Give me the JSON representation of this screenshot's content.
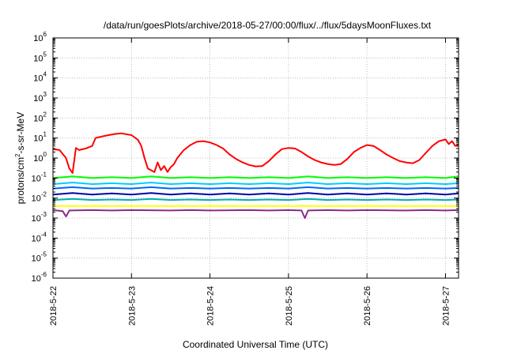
{
  "chart_data": {
    "type": "line",
    "title": "/data/run/goesPlots/archive/2018-05-27/00:00/flux/../flux/5daysMoonFluxes.txt",
    "xlabel": "Coordinated Universal Time (UTC)",
    "ylabel": {
      "prefix": "protons/cm",
      "sup": "2",
      "suffix": "-s-sr-MeV"
    },
    "y_scale": "log",
    "ylim": [
      1e-06,
      1000000
    ],
    "y_ticks": [
      {
        "base": "10",
        "exp": "-6",
        "value": 1e-06
      },
      {
        "base": "10",
        "exp": "-5",
        "value": 1e-05
      },
      {
        "base": "10",
        "exp": "-4",
        "value": 0.0001
      },
      {
        "base": "10",
        "exp": "-3",
        "value": 0.001
      },
      {
        "base": "10",
        "exp": "-2",
        "value": 0.01
      },
      {
        "base": "10",
        "exp": "-1",
        "value": 0.1
      },
      {
        "base": "10",
        "exp": "0",
        "value": 1
      },
      {
        "base": "10",
        "exp": "1",
        "value": 10
      },
      {
        "base": "10",
        "exp": "2",
        "value": 100
      },
      {
        "base": "10",
        "exp": "3",
        "value": 1000
      },
      {
        "base": "10",
        "exp": "4",
        "value": 10000
      },
      {
        "base": "10",
        "exp": "5",
        "value": 100000
      },
      {
        "base": "10",
        "exp": "6",
        "value": 1000000
      }
    ],
    "x_ticks": [
      "2018-5-22",
      "2018-5-23",
      "2018-5-24",
      "2018-5-25",
      "2018-5-26",
      "2018-5-27"
    ],
    "xlim": [
      "2018-5-22",
      "2018-5-27 04:00"
    ],
    "grid": true,
    "legend": "none",
    "series": [
      {
        "color": "#ff0000",
        "points": [
          [
            "2018-5-22 00:00",
            2.8
          ],
          [
            "2018-5-22 02:00",
            2.5
          ],
          [
            "2018-5-22 04:00",
            1.0
          ],
          [
            "2018-5-22 05:00",
            0.3
          ],
          [
            "2018-5-22 06:00",
            0.18
          ],
          [
            "2018-5-22 07:00",
            3.2
          ],
          [
            "2018-5-22 08:00",
            2.5
          ],
          [
            "2018-5-22 10:00",
            3.0
          ],
          [
            "2018-5-22 12:00",
            4.0
          ],
          [
            "2018-5-22 13:00",
            10.0
          ],
          [
            "2018-5-22 15:00",
            12.0
          ],
          [
            "2018-5-22 17:00",
            14.0
          ],
          [
            "2018-5-22 19:00",
            16.0
          ],
          [
            "2018-5-22 21:00",
            17.0
          ],
          [
            "2018-5-23 00:00",
            14.0
          ],
          [
            "2018-5-23 02:00",
            8.0
          ],
          [
            "2018-5-23 03:00",
            4.0
          ],
          [
            "2018-5-23 04:00",
            1.0
          ],
          [
            "2018-5-23 05:00",
            0.3
          ],
          [
            "2018-5-23 07:00",
            0.2
          ],
          [
            "2018-5-23 08:00",
            0.6
          ],
          [
            "2018-5-23 09:00",
            0.25
          ],
          [
            "2018-5-23 10:00",
            0.4
          ],
          [
            "2018-5-23 11:00",
            0.2
          ],
          [
            "2018-5-23 12:00",
            0.35
          ],
          [
            "2018-5-23 13:00",
            0.5
          ],
          [
            "2018-5-23 14:00",
            1.0
          ],
          [
            "2018-5-23 16:00",
            2.5
          ],
          [
            "2018-5-23 18:00",
            4.5
          ],
          [
            "2018-5-23 20:00",
            6.5
          ],
          [
            "2018-5-23 22:00",
            7.0
          ],
          [
            "2018-5-24 00:00",
            6.0
          ],
          [
            "2018-5-24 02:00",
            4.5
          ],
          [
            "2018-5-24 04:00",
            3.0
          ],
          [
            "2018-5-24 06:00",
            1.5
          ],
          [
            "2018-5-24 08:00",
            0.9
          ],
          [
            "2018-5-24 10:00",
            0.6
          ],
          [
            "2018-5-24 12:00",
            0.45
          ],
          [
            "2018-5-24 14:00",
            0.38
          ],
          [
            "2018-5-24 16:00",
            0.4
          ],
          [
            "2018-5-24 18:00",
            0.7
          ],
          [
            "2018-5-24 20:00",
            1.5
          ],
          [
            "2018-5-24 22:00",
            2.8
          ],
          [
            "2018-5-25 00:00",
            3.2
          ],
          [
            "2018-5-25 02:00",
            3.0
          ],
          [
            "2018-5-25 04:00",
            2.0
          ],
          [
            "2018-5-25 06:00",
            1.2
          ],
          [
            "2018-5-25 08:00",
            0.8
          ],
          [
            "2018-5-25 10:00",
            0.6
          ],
          [
            "2018-5-25 12:00",
            0.5
          ],
          [
            "2018-5-25 14:00",
            0.45
          ],
          [
            "2018-5-25 16:00",
            0.5
          ],
          [
            "2018-5-25 18:00",
            0.9
          ],
          [
            "2018-5-25 20:00",
            2.0
          ],
          [
            "2018-5-25 22:00",
            3.2
          ],
          [
            "2018-5-26 00:00",
            4.5
          ],
          [
            "2018-5-26 02:00",
            4.0
          ],
          [
            "2018-5-26 04:00",
            2.5
          ],
          [
            "2018-5-26 06:00",
            1.5
          ],
          [
            "2018-5-26 08:00",
            1.0
          ],
          [
            "2018-5-26 10:00",
            0.7
          ],
          [
            "2018-5-26 12:00",
            0.6
          ],
          [
            "2018-5-26 14:00",
            0.55
          ],
          [
            "2018-5-26 16:00",
            0.8
          ],
          [
            "2018-5-26 18:00",
            1.8
          ],
          [
            "2018-5-26 20:00",
            4.0
          ],
          [
            "2018-5-26 22:00",
            7.0
          ],
          [
            "2018-5-27 00:00",
            8.5
          ],
          [
            "2018-5-27 01:00",
            5.0
          ],
          [
            "2018-5-27 02:00",
            7.0
          ],
          [
            "2018-5-27 03:00",
            4.0
          ],
          [
            "2018-5-27 04:00",
            4.5
          ]
        ]
      },
      {
        "color": "#00ff00",
        "points": [
          [
            "2018-5-22 00:00",
            0.1
          ],
          [
            "2018-5-22 06:00",
            0.12
          ],
          [
            "2018-5-22 12:00",
            0.1
          ],
          [
            "2018-5-22 18:00",
            0.11
          ],
          [
            "2018-5-23 00:00",
            0.1
          ],
          [
            "2018-5-23 06:00",
            0.12
          ],
          [
            "2018-5-23 12:00",
            0.1
          ],
          [
            "2018-5-23 18:00",
            0.11
          ],
          [
            "2018-5-24 00:00",
            0.1
          ],
          [
            "2018-5-24 06:00",
            0.11
          ],
          [
            "2018-5-24 12:00",
            0.1
          ],
          [
            "2018-5-24 18:00",
            0.11
          ],
          [
            "2018-5-25 00:00",
            0.1
          ],
          [
            "2018-5-25 06:00",
            0.12
          ],
          [
            "2018-5-25 12:00",
            0.1
          ],
          [
            "2018-5-25 18:00",
            0.11
          ],
          [
            "2018-5-26 00:00",
            0.1
          ],
          [
            "2018-5-26 06:00",
            0.11
          ],
          [
            "2018-5-26 12:00",
            0.1
          ],
          [
            "2018-5-26 18:00",
            0.11
          ],
          [
            "2018-5-27 00:00",
            0.1
          ],
          [
            "2018-5-27 04:00",
            0.12
          ]
        ]
      },
      {
        "color": "#00ccff",
        "points": [
          [
            "2018-5-22 00:00",
            0.05
          ],
          [
            "2018-5-22 06:00",
            0.06
          ],
          [
            "2018-5-22 12:00",
            0.05
          ],
          [
            "2018-5-22 18:00",
            0.055
          ],
          [
            "2018-5-23 00:00",
            0.05
          ],
          [
            "2018-5-23 06:00",
            0.06
          ],
          [
            "2018-5-23 12:00",
            0.05
          ],
          [
            "2018-5-23 18:00",
            0.055
          ],
          [
            "2018-5-24 00:00",
            0.05
          ],
          [
            "2018-5-24 06:00",
            0.055
          ],
          [
            "2018-5-24 12:00",
            0.05
          ],
          [
            "2018-5-24 18:00",
            0.055
          ],
          [
            "2018-5-25 00:00",
            0.05
          ],
          [
            "2018-5-25 06:00",
            0.06
          ],
          [
            "2018-5-25 12:00",
            0.05
          ],
          [
            "2018-5-25 18:00",
            0.055
          ],
          [
            "2018-5-26 00:00",
            0.05
          ],
          [
            "2018-5-26 06:00",
            0.055
          ],
          [
            "2018-5-26 12:00",
            0.05
          ],
          [
            "2018-5-26 18:00",
            0.055
          ],
          [
            "2018-5-27 00:00",
            0.05
          ],
          [
            "2018-5-27 04:00",
            0.055
          ]
        ]
      },
      {
        "color": "#0066ff",
        "points": [
          [
            "2018-5-22 00:00",
            0.03
          ],
          [
            "2018-5-22 06:00",
            0.035
          ],
          [
            "2018-5-22 12:00",
            0.03
          ],
          [
            "2018-5-22 18:00",
            0.032
          ],
          [
            "2018-5-23 00:00",
            0.03
          ],
          [
            "2018-5-23 06:00",
            0.035
          ],
          [
            "2018-5-23 12:00",
            0.03
          ],
          [
            "2018-5-23 18:00",
            0.032
          ],
          [
            "2018-5-24 00:00",
            0.03
          ],
          [
            "2018-5-24 06:00",
            0.032
          ],
          [
            "2018-5-24 12:00",
            0.03
          ],
          [
            "2018-5-24 18:00",
            0.032
          ],
          [
            "2018-5-25 00:00",
            0.03
          ],
          [
            "2018-5-25 06:00",
            0.035
          ],
          [
            "2018-5-25 12:00",
            0.03
          ],
          [
            "2018-5-25 18:00",
            0.032
          ],
          [
            "2018-5-26 00:00",
            0.03
          ],
          [
            "2018-5-26 06:00",
            0.032
          ],
          [
            "2018-5-26 12:00",
            0.03
          ],
          [
            "2018-5-26 18:00",
            0.032
          ],
          [
            "2018-5-27 00:00",
            0.03
          ],
          [
            "2018-5-27 04:00",
            0.032
          ]
        ]
      },
      {
        "color": "#0000b0",
        "points": [
          [
            "2018-5-22 00:00",
            0.015
          ],
          [
            "2018-5-22 06:00",
            0.018
          ],
          [
            "2018-5-22 12:00",
            0.015
          ],
          [
            "2018-5-22 18:00",
            0.017
          ],
          [
            "2018-5-23 00:00",
            0.015
          ],
          [
            "2018-5-23 06:00",
            0.018
          ],
          [
            "2018-5-23 12:00",
            0.015
          ],
          [
            "2018-5-23 18:00",
            0.017
          ],
          [
            "2018-5-24 00:00",
            0.015
          ],
          [
            "2018-5-24 06:00",
            0.017
          ],
          [
            "2018-5-24 12:00",
            0.015
          ],
          [
            "2018-5-24 18:00",
            0.017
          ],
          [
            "2018-5-25 00:00",
            0.015
          ],
          [
            "2018-5-25 06:00",
            0.018
          ],
          [
            "2018-5-25 12:00",
            0.015
          ],
          [
            "2018-5-25 18:00",
            0.017
          ],
          [
            "2018-5-26 00:00",
            0.015
          ],
          [
            "2018-5-26 06:00",
            0.017
          ],
          [
            "2018-5-26 12:00",
            0.015
          ],
          [
            "2018-5-26 18:00",
            0.017
          ],
          [
            "2018-5-27 00:00",
            0.015
          ],
          [
            "2018-5-27 04:00",
            0.017
          ]
        ]
      },
      {
        "color": "#00b0b0",
        "points": [
          [
            "2018-5-22 00:00",
            0.008
          ],
          [
            "2018-5-22 06:00",
            0.009
          ],
          [
            "2018-5-22 12:00",
            0.008
          ],
          [
            "2018-5-22 18:00",
            0.0085
          ],
          [
            "2018-5-23 00:00",
            0.008
          ],
          [
            "2018-5-23 06:00",
            0.009
          ],
          [
            "2018-5-23 12:00",
            0.008
          ],
          [
            "2018-5-23 18:00",
            0.0085
          ],
          [
            "2018-5-24 00:00",
            0.008
          ],
          [
            "2018-5-24 06:00",
            0.0085
          ],
          [
            "2018-5-24 12:00",
            0.008
          ],
          [
            "2018-5-24 18:00",
            0.0085
          ],
          [
            "2018-5-25 00:00",
            0.008
          ],
          [
            "2018-5-25 06:00",
            0.009
          ],
          [
            "2018-5-25 12:00",
            0.008
          ],
          [
            "2018-5-25 18:00",
            0.0085
          ],
          [
            "2018-5-26 00:00",
            0.008
          ],
          [
            "2018-5-26 06:00",
            0.0085
          ],
          [
            "2018-5-26 12:00",
            0.008
          ],
          [
            "2018-5-26 18:00",
            0.0085
          ],
          [
            "2018-5-27 00:00",
            0.008
          ],
          [
            "2018-5-27 04:00",
            0.0085
          ]
        ]
      },
      {
        "color": "#ffff00",
        "points": [
          [
            "2018-5-22 00:00",
            0.004
          ],
          [
            "2018-5-22 12:00",
            0.004
          ],
          [
            "2018-5-23 00:00",
            0.004
          ],
          [
            "2018-5-23 12:00",
            0.004
          ],
          [
            "2018-5-24 00:00",
            0.004
          ],
          [
            "2018-5-24 12:00",
            0.004
          ],
          [
            "2018-5-25 00:00",
            0.004
          ],
          [
            "2018-5-25 12:00",
            0.004
          ],
          [
            "2018-5-26 00:00",
            0.004
          ],
          [
            "2018-5-26 12:00",
            0.004
          ],
          [
            "2018-5-27 00:00",
            0.004
          ],
          [
            "2018-5-27 04:00",
            0.004
          ]
        ]
      },
      {
        "color": "#8b2b8b",
        "points": [
          [
            "2018-5-22 00:00",
            0.0025
          ],
          [
            "2018-5-22 03:00",
            0.0022
          ],
          [
            "2018-5-22 04:00",
            0.0012
          ],
          [
            "2018-5-22 05:00",
            0.0024
          ],
          [
            "2018-5-22 12:00",
            0.0025
          ],
          [
            "2018-5-22 18:00",
            0.0024
          ],
          [
            "2018-5-23 00:00",
            0.0025
          ],
          [
            "2018-5-23 12:00",
            0.0024
          ],
          [
            "2018-5-23 18:00",
            0.0025
          ],
          [
            "2018-5-24 00:00",
            0.0024
          ],
          [
            "2018-5-24 12:00",
            0.0025
          ],
          [
            "2018-5-24 18:00",
            0.0024
          ],
          [
            "2018-5-25 00:00",
            0.0025
          ],
          [
            "2018-5-25 04:00",
            0.0024
          ],
          [
            "2018-5-25 05:00",
            0.001
          ],
          [
            "2018-5-25 06:00",
            0.0024
          ],
          [
            "2018-5-25 12:00",
            0.0025
          ],
          [
            "2018-5-25 18:00",
            0.0024
          ],
          [
            "2018-5-26 00:00",
            0.0025
          ],
          [
            "2018-5-26 12:00",
            0.0024
          ],
          [
            "2018-5-26 18:00",
            0.0025
          ],
          [
            "2018-5-27 00:00",
            0.0024
          ],
          [
            "2018-5-27 04:00",
            0.0025
          ]
        ]
      }
    ]
  }
}
